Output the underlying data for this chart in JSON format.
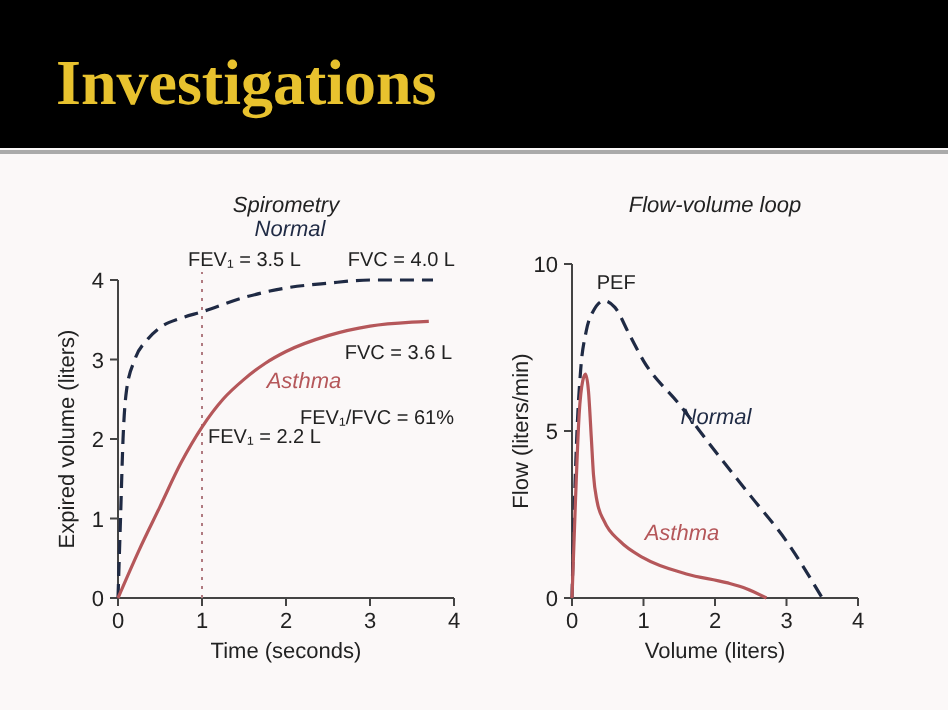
{
  "chart_data": [
    {
      "type": "other",
      "title": "Investigations"
    },
    {
      "type": "line",
      "title": "Spirometry",
      "xlabel": "Time (seconds)",
      "ylabel": "Expired volume (liters)",
      "xlim": [
        0,
        4
      ],
      "ylim": [
        0,
        4
      ],
      "xticks": [
        0,
        1,
        2,
        3,
        4
      ],
      "yticks": [
        0,
        1,
        2,
        3,
        4
      ],
      "grid": false,
      "marker": "none",
      "series": [
        {
          "name": "Normal",
          "color": "#1f2a44",
          "line_style": "dashed",
          "x": [
            0,
            0.03,
            0.06,
            0.1,
            0.2,
            0.35,
            0.5,
            0.75,
            1,
            1.5,
            2,
            2.5,
            3,
            3.75
          ],
          "values": [
            0,
            1,
            2,
            2.6,
            3.0,
            3.25,
            3.4,
            3.52,
            3.6,
            3.78,
            3.9,
            3.96,
            4.0,
            4.0
          ]
        },
        {
          "name": "Asthma",
          "color": "#b5575a",
          "line_style": "solid",
          "x": [
            0,
            0.25,
            0.5,
            0.75,
            1,
            1.25,
            1.5,
            1.75,
            2,
            2.5,
            3,
            3.5,
            3.7
          ],
          "values": [
            0,
            0.6,
            1.15,
            1.7,
            2.15,
            2.5,
            2.75,
            2.95,
            3.1,
            3.3,
            3.42,
            3.47,
            3.48
          ]
        }
      ],
      "ref_lines": [
        {
          "axis": "x",
          "value": 1,
          "color": "#b07a80",
          "line_style": "dotted"
        }
      ],
      "annotations": [
        {
          "text": "FEV₁ = 3.5 L",
          "x": 1,
          "y": 3.5
        },
        {
          "text": "FVC = 4.0 L",
          "x": 3.75,
          "y": 4.0
        },
        {
          "text": "FVC = 3.6 L",
          "x": 3.7,
          "y": 3.48
        },
        "FEV₁/FVC = 61%",
        {
          "text": "FEV₁ = 2.2 L",
          "x": 1,
          "y": 2.2
        }
      ]
    },
    {
      "type": "line",
      "title": "Flow-volume loop",
      "xlabel": "Volume (liters)",
      "ylabel": "Flow (liters/min)",
      "xlim": [
        0,
        4
      ],
      "ylim": [
        0,
        10
      ],
      "xticks": [
        0,
        1,
        2,
        3,
        4
      ],
      "yticks": [
        0,
        5,
        10
      ],
      "grid": false,
      "marker": "none",
      "series": [
        {
          "name": "Normal",
          "color": "#1f2a44",
          "line_style": "dashed",
          "x": [
            0,
            0.03,
            0.07,
            0.12,
            0.2,
            0.3,
            0.45,
            0.6,
            0.8,
            1,
            1.5,
            2,
            2.5,
            3,
            3.5
          ],
          "values": [
            0,
            2.5,
            5,
            6.8,
            8,
            8.6,
            8.9,
            8.7,
            7.9,
            7.1,
            5.8,
            4.4,
            3.05,
            1.7,
            0
          ]
        },
        {
          "name": "Asthma",
          "color": "#b5575a",
          "line_style": "solid",
          "x": [
            0,
            0.05,
            0.1,
            0.15,
            0.19,
            0.23,
            0.27,
            0.3,
            0.35,
            0.45,
            0.67,
            1,
            1.6,
            2.16,
            2.44,
            2.72
          ],
          "values": [
            0,
            3,
            5.5,
            6.5,
            6.7,
            6.2,
            4.8,
            3.7,
            2.9,
            2.3,
            1.7,
            1.2,
            0.72,
            0.46,
            0.28,
            0
          ]
        }
      ],
      "annotations": [
        {
          "text": "PEF",
          "x": 0.45,
          "y": 8.9
        }
      ]
    }
  ]
}
